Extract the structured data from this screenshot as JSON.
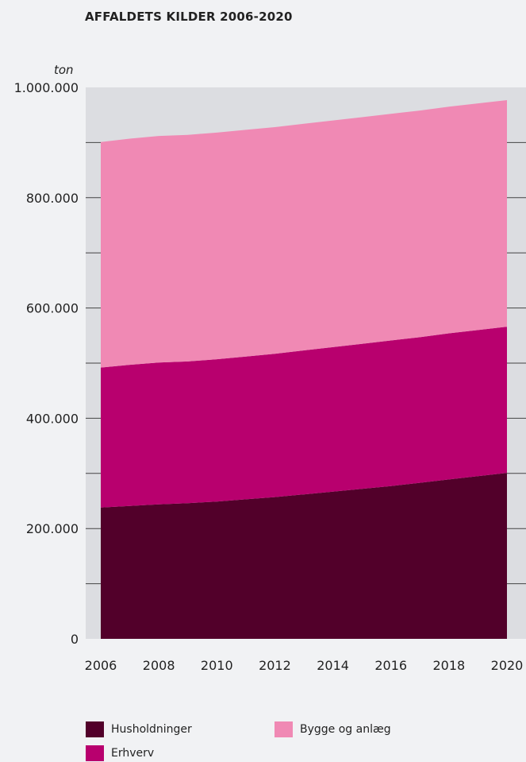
{
  "title": "AFFALDETS KILDER 2006-2020",
  "unit": "ton",
  "chart_data": {
    "type": "area",
    "stacked": true,
    "title": "AFFALDETS KILDER 2006-2020",
    "ylabel": "ton",
    "ylim": [
      0,
      1000000
    ],
    "yticks": [
      0,
      200000,
      400000,
      600000,
      800000,
      1000000
    ],
    "ytick_labels": [
      "0",
      "200.000",
      "400.000",
      "600.000",
      "800.000",
      "1.000.000"
    ],
    "xticks": [
      2006,
      2008,
      2010,
      2012,
      2014,
      2016,
      2018,
      2020
    ],
    "x": [
      2006,
      2007,
      2008,
      2009,
      2010,
      2011,
      2012,
      2013,
      2014,
      2015,
      2016,
      2017,
      2018,
      2019,
      2020
    ],
    "grid": "horizontal",
    "legend_position": "bottom",
    "series": [
      {
        "name": "Husholdninger",
        "color": "#52002a",
        "values": [
          238000,
          241000,
          244000,
          246000,
          249000,
          253000,
          257000,
          262000,
          267000,
          272000,
          277000,
          283000,
          289000,
          295000,
          301000
        ]
      },
      {
        "name": "Erhverv",
        "color": "#b8006e",
        "values": [
          254000,
          256000,
          257000,
          257000,
          258000,
          259000,
          260000,
          261000,
          262000,
          263000,
          264000,
          264000,
          265000,
          265000,
          265000
        ]
      },
      {
        "name": "Bygge og anlæg",
        "color": "#f089b4",
        "values": [
          409000,
          410000,
          411000,
          411000,
          411000,
          411000,
          411000,
          411000,
          411000,
          411000,
          411000,
          411000,
          411000,
          411000,
          411000
        ]
      }
    ]
  },
  "legend": [
    {
      "label": "Husholdninger",
      "color": "#52002a"
    },
    {
      "label": "Bygge og anlæg",
      "color": "#f089b4"
    },
    {
      "label": "Erhverv",
      "color": "#b8006e"
    }
  ]
}
